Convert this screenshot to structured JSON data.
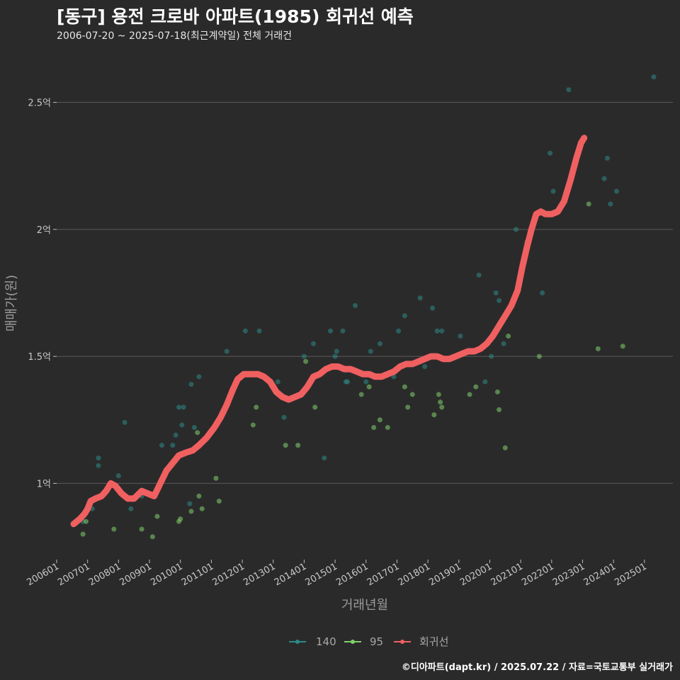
{
  "header": {
    "title": "[동구] 용전 크로바 아파트(1985) 회귀선 예측",
    "subtitle": "2006-07-20 ~ 2025-07-18(최근계약일) 전체 거래건"
  },
  "footer": {
    "credit": "©디아파트(dapt.kr) / 2025.07.22 / 자료=국토교통부 실거래가"
  },
  "colors": {
    "background": "#2b2a2b",
    "grid": "#5a5a5a",
    "s140": "#2b8a86",
    "s95": "#7fd16a",
    "regression": "#f06060"
  },
  "chart_data": {
    "type": "scatter",
    "title": "[동구] 용전 크로바 아파트(1985) 회귀선 예측",
    "xlabel": "거래년월",
    "ylabel": "매매가(원)",
    "x_range": [
      2006.0,
      2025.92
    ],
    "ylim": [
      0.7,
      2.68
    ],
    "x_ticks": [
      {
        "value": 2006,
        "label": "200601"
      },
      {
        "value": 2007,
        "label": "200701"
      },
      {
        "value": 2008,
        "label": "200801"
      },
      {
        "value": 2009,
        "label": "200901"
      },
      {
        "value": 2010,
        "label": "201001"
      },
      {
        "value": 2011,
        "label": "201101"
      },
      {
        "value": 2012,
        "label": "201201"
      },
      {
        "value": 2013,
        "label": "201301"
      },
      {
        "value": 2014,
        "label": "201401"
      },
      {
        "value": 2015,
        "label": "201501"
      },
      {
        "value": 2016,
        "label": "201601"
      },
      {
        "value": 2017,
        "label": "201701"
      },
      {
        "value": 2018,
        "label": "201801"
      },
      {
        "value": 2019,
        "label": "201901"
      },
      {
        "value": 2020,
        "label": "202001"
      },
      {
        "value": 2021,
        "label": "202101"
      },
      {
        "value": 2022,
        "label": "202201"
      },
      {
        "value": 2023,
        "label": "202301"
      },
      {
        "value": 2024,
        "label": "202401"
      },
      {
        "value": 2025,
        "label": "202501"
      }
    ],
    "y_ticks": [
      {
        "value": 1.0,
        "label": "1억"
      },
      {
        "value": 1.5,
        "label": "1.5억"
      },
      {
        "value": 2.0,
        "label": "2억"
      },
      {
        "value": 2.5,
        "label": "2.5억"
      }
    ],
    "legend": [
      "140",
      "95",
      "회귀선"
    ],
    "series": [
      {
        "name": "140",
        "points": [
          [
            2006.85,
            0.85
          ],
          [
            2007.15,
            0.9
          ],
          [
            2007.35,
            1.1
          ],
          [
            2007.35,
            1.07
          ],
          [
            2008.0,
            1.03
          ],
          [
            2008.2,
            1.24
          ],
          [
            2008.4,
            0.9
          ],
          [
            2008.75,
            0.95
          ],
          [
            2009.4,
            1.15
          ],
          [
            2009.75,
            1.15
          ],
          [
            2009.85,
            1.19
          ],
          [
            2009.95,
            1.3
          ],
          [
            2010.05,
            1.23
          ],
          [
            2010.1,
            1.3
          ],
          [
            2010.3,
            0.92
          ],
          [
            2010.35,
            1.39
          ],
          [
            2010.45,
            1.22
          ],
          [
            2010.6,
            1.42
          ],
          [
            2011.5,
            1.52
          ],
          [
            2012.1,
            1.6
          ],
          [
            2012.55,
            1.6
          ],
          [
            2013.15,
            1.4
          ],
          [
            2013.35,
            1.26
          ],
          [
            2014.0,
            1.5
          ],
          [
            2014.3,
            1.55
          ],
          [
            2014.65,
            1.1
          ],
          [
            2014.85,
            1.6
          ],
          [
            2015.0,
            1.5
          ],
          [
            2015.05,
            1.52
          ],
          [
            2015.25,
            1.6
          ],
          [
            2015.35,
            1.4
          ],
          [
            2015.4,
            1.4
          ],
          [
            2015.65,
            1.7
          ],
          [
            2016.0,
            1.4
          ],
          [
            2016.15,
            1.52
          ],
          [
            2016.45,
            1.55
          ],
          [
            2016.9,
            1.42
          ],
          [
            2017.05,
            1.6
          ],
          [
            2017.25,
            1.66
          ],
          [
            2017.75,
            1.73
          ],
          [
            2017.9,
            1.46
          ],
          [
            2018.15,
            1.69
          ],
          [
            2018.3,
            1.6
          ],
          [
            2018.45,
            1.6
          ],
          [
            2019.05,
            1.58
          ],
          [
            2019.65,
            1.82
          ],
          [
            2019.85,
            1.4
          ],
          [
            2020.05,
            1.5
          ],
          [
            2020.2,
            1.75
          ],
          [
            2020.3,
            1.72
          ],
          [
            2020.45,
            1.55
          ],
          [
            2020.85,
            2.0
          ],
          [
            2021.2,
            1.95
          ],
          [
            2021.7,
            1.75
          ],
          [
            2021.95,
            2.3
          ],
          [
            2022.05,
            2.15
          ],
          [
            2022.55,
            2.55
          ],
          [
            2023.7,
            2.2
          ],
          [
            2023.8,
            2.28
          ],
          [
            2023.9,
            2.1
          ],
          [
            2024.1,
            2.15
          ],
          [
            2025.3,
            2.6
          ]
        ]
      },
      {
        "name": "95",
        "points": [
          [
            2006.75,
            0.86
          ],
          [
            2006.85,
            0.8
          ],
          [
            2006.95,
            0.85
          ],
          [
            2007.85,
            0.82
          ],
          [
            2008.75,
            0.82
          ],
          [
            2009.1,
            0.79
          ],
          [
            2009.25,
            0.87
          ],
          [
            2009.95,
            0.85
          ],
          [
            2010.0,
            0.86
          ],
          [
            2010.35,
            0.89
          ],
          [
            2010.55,
            1.2
          ],
          [
            2010.6,
            0.95
          ],
          [
            2010.7,
            0.9
          ],
          [
            2011.15,
            1.02
          ],
          [
            2011.25,
            0.93
          ],
          [
            2012.35,
            1.23
          ],
          [
            2012.45,
            1.3
          ],
          [
            2013.4,
            1.15
          ],
          [
            2013.8,
            1.15
          ],
          [
            2014.05,
            1.48
          ],
          [
            2014.35,
            1.3
          ],
          [
            2015.85,
            1.35
          ],
          [
            2016.1,
            1.38
          ],
          [
            2016.25,
            1.22
          ],
          [
            2016.45,
            1.25
          ],
          [
            2016.7,
            1.22
          ],
          [
            2017.25,
            1.38
          ],
          [
            2017.35,
            1.3
          ],
          [
            2017.5,
            1.35
          ],
          [
            2018.2,
            1.27
          ],
          [
            2018.35,
            1.35
          ],
          [
            2018.4,
            1.32
          ],
          [
            2018.45,
            1.3
          ],
          [
            2019.35,
            1.35
          ],
          [
            2019.55,
            1.38
          ],
          [
            2020.25,
            1.36
          ],
          [
            2020.3,
            1.29
          ],
          [
            2020.5,
            1.14
          ],
          [
            2020.6,
            1.58
          ],
          [
            2021.6,
            1.5
          ],
          [
            2023.2,
            2.1
          ],
          [
            2023.5,
            1.53
          ],
          [
            2024.3,
            1.54
          ]
        ]
      },
      {
        "name": "회귀선",
        "points": [
          [
            2006.55,
            0.84
          ],
          [
            2006.65,
            0.85
          ],
          [
            2006.75,
            0.86
          ],
          [
            2006.9,
            0.88
          ],
          [
            2007.0,
            0.9
          ],
          [
            2007.1,
            0.93
          ],
          [
            2007.25,
            0.94
          ],
          [
            2007.45,
            0.95
          ],
          [
            2007.6,
            0.97
          ],
          [
            2007.75,
            1.0
          ],
          [
            2007.9,
            0.99
          ],
          [
            2008.1,
            0.96
          ],
          [
            2008.3,
            0.94
          ],
          [
            2008.5,
            0.94
          ],
          [
            2008.75,
            0.97
          ],
          [
            2008.95,
            0.96
          ],
          [
            2009.15,
            0.95
          ],
          [
            2009.35,
            1.0
          ],
          [
            2009.55,
            1.05
          ],
          [
            2009.75,
            1.08
          ],
          [
            2009.95,
            1.11
          ],
          [
            2010.15,
            1.12
          ],
          [
            2010.4,
            1.13
          ],
          [
            2010.6,
            1.15
          ],
          [
            2010.85,
            1.18
          ],
          [
            2011.1,
            1.22
          ],
          [
            2011.3,
            1.26
          ],
          [
            2011.5,
            1.31
          ],
          [
            2011.7,
            1.37
          ],
          [
            2011.85,
            1.41
          ],
          [
            2012.05,
            1.43
          ],
          [
            2012.3,
            1.43
          ],
          [
            2012.5,
            1.43
          ],
          [
            2012.7,
            1.42
          ],
          [
            2012.9,
            1.4
          ],
          [
            2013.1,
            1.36
          ],
          [
            2013.3,
            1.34
          ],
          [
            2013.5,
            1.33
          ],
          [
            2013.7,
            1.34
          ],
          [
            2013.9,
            1.35
          ],
          [
            2014.1,
            1.38
          ],
          [
            2014.3,
            1.42
          ],
          [
            2014.5,
            1.43
          ],
          [
            2014.7,
            1.45
          ],
          [
            2014.9,
            1.46
          ],
          [
            2015.1,
            1.46
          ],
          [
            2015.3,
            1.45
          ],
          [
            2015.5,
            1.45
          ],
          [
            2015.7,
            1.44
          ],
          [
            2015.9,
            1.43
          ],
          [
            2016.1,
            1.43
          ],
          [
            2016.3,
            1.42
          ],
          [
            2016.5,
            1.42
          ],
          [
            2016.7,
            1.43
          ],
          [
            2016.9,
            1.44
          ],
          [
            2017.1,
            1.46
          ],
          [
            2017.3,
            1.47
          ],
          [
            2017.5,
            1.47
          ],
          [
            2017.7,
            1.48
          ],
          [
            2017.9,
            1.49
          ],
          [
            2018.1,
            1.5
          ],
          [
            2018.3,
            1.5
          ],
          [
            2018.5,
            1.49
          ],
          [
            2018.7,
            1.49
          ],
          [
            2018.9,
            1.5
          ],
          [
            2019.1,
            1.51
          ],
          [
            2019.3,
            1.52
          ],
          [
            2019.5,
            1.52
          ],
          [
            2019.7,
            1.53
          ],
          [
            2019.9,
            1.55
          ],
          [
            2020.1,
            1.58
          ],
          [
            2020.3,
            1.62
          ],
          [
            2020.5,
            1.66
          ],
          [
            2020.7,
            1.7
          ],
          [
            2020.9,
            1.76
          ],
          [
            2021.05,
            1.85
          ],
          [
            2021.2,
            1.93
          ],
          [
            2021.35,
            2.0
          ],
          [
            2021.5,
            2.06
          ],
          [
            2021.65,
            2.07
          ],
          [
            2021.8,
            2.06
          ],
          [
            2022.0,
            2.06
          ],
          [
            2022.2,
            2.07
          ],
          [
            2022.4,
            2.11
          ],
          [
            2022.6,
            2.19
          ],
          [
            2022.8,
            2.28
          ],
          [
            2022.95,
            2.34
          ],
          [
            2023.05,
            2.36
          ]
        ]
      }
    ]
  }
}
